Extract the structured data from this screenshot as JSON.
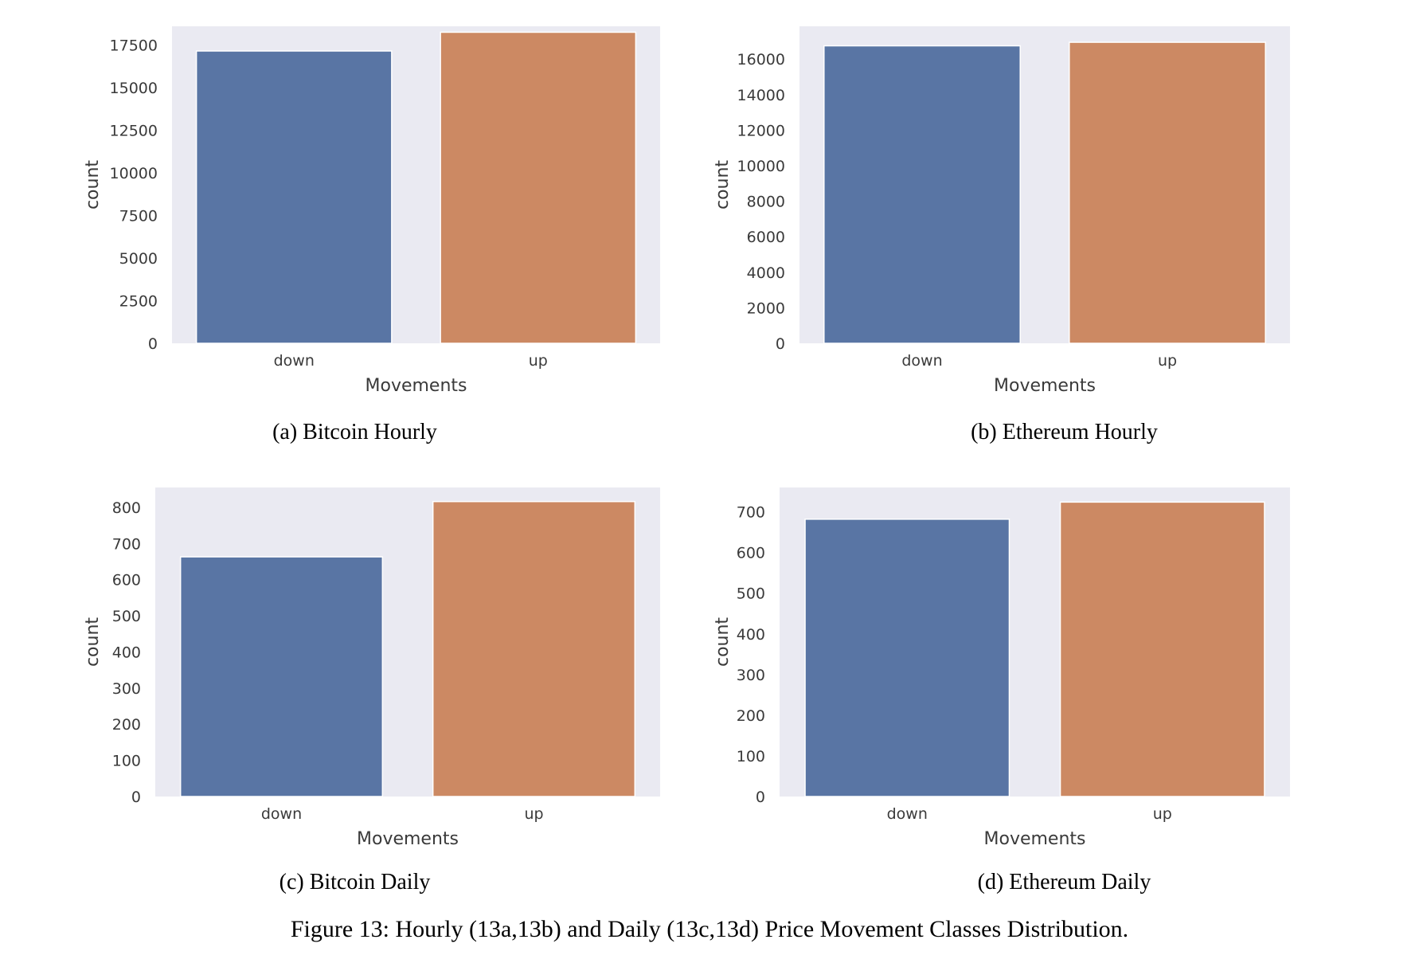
{
  "colors": {
    "down": "#5975a4",
    "up": "#cc8963",
    "plot_bg": "#eaeaf2"
  },
  "chart_data": [
    {
      "type": "bar",
      "caption": "(a) Bitcoin Hourly",
      "categories": [
        "down",
        "up"
      ],
      "values": [
        17150,
        18250
      ],
      "xlabel": "Movements",
      "ylabel": "count",
      "ylim": [
        0,
        18600
      ],
      "yticks": [
        0,
        2500,
        5000,
        7500,
        10000,
        12500,
        15000,
        17500
      ],
      "ytick_labels": [
        "0",
        "2500",
        "5000",
        "7500",
        "10000",
        "12500",
        "15000",
        "17500"
      ],
      "grid": false
    },
    {
      "type": "bar",
      "caption": "(b) Ethereum Hourly",
      "categories": [
        "down",
        "up"
      ],
      "values": [
        16750,
        16950
      ],
      "xlabel": "Movements",
      "ylabel": "count",
      "ylim": [
        0,
        17850
      ],
      "yticks": [
        0,
        2000,
        4000,
        6000,
        8000,
        10000,
        12000,
        14000,
        16000
      ],
      "ytick_labels": [
        "0",
        "2000",
        "4000",
        "6000",
        "8000",
        "10000",
        "12000",
        "14000",
        "16000"
      ],
      "grid": false
    },
    {
      "type": "bar",
      "caption": "(c) Bitcoin Daily",
      "categories": [
        "down",
        "up"
      ],
      "values": [
        663,
        816
      ],
      "xlabel": "Movements",
      "ylabel": "count",
      "ylim": [
        0,
        855
      ],
      "yticks": [
        0,
        100,
        200,
        300,
        400,
        500,
        600,
        700,
        800
      ],
      "ytick_labels": [
        "0",
        "100",
        "200",
        "300",
        "400",
        "500",
        "600",
        "700",
        "800"
      ],
      "grid": false
    },
    {
      "type": "bar",
      "caption": "(d) Ethereum Daily",
      "categories": [
        "down",
        "up"
      ],
      "values": [
        682,
        724
      ],
      "xlabel": "Movements",
      "ylabel": "count",
      "ylim": [
        0,
        760
      ],
      "yticks": [
        0,
        100,
        200,
        300,
        400,
        500,
        600,
        700
      ],
      "ytick_labels": [
        "0",
        "100",
        "200",
        "300",
        "400",
        "500",
        "600",
        "700"
      ],
      "grid": false
    }
  ],
  "figure_caption": "Figure 13: Hourly (13a,13b) and Daily (13c,13d) Price Movement Classes Distribution."
}
